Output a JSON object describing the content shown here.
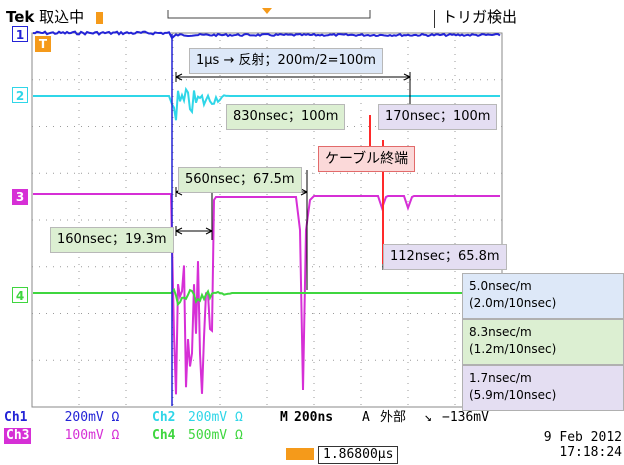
{
  "header": {
    "brand": "Tek",
    "status": "取込中",
    "trigger_status": "トリガ検出"
  },
  "channels": [
    {
      "marker": "1",
      "color": "#2323d6"
    },
    {
      "marker": "2",
      "color": "#2fd6e8"
    },
    {
      "marker": "3",
      "color": "#d62fd6"
    },
    {
      "marker": "4",
      "color": "#3fd63f"
    }
  ],
  "trigger_marker": "T",
  "annotations": {
    "reflection": "1μs → 反射；200m/2=100m",
    "a830": "830nsec；100m",
    "a170": "170nsec；100m",
    "cable_end": "ケーブル終端",
    "a560": "560nsec；67.5m",
    "a160": "160nsec；19.3m",
    "a112": "112nsec；65.8m"
  },
  "legend": [
    {
      "text": "5.0nsec/m\n(2.0m/10nsec)",
      "color": "#dde8f8"
    },
    {
      "text": "8.3nsec/m\n(1.2m/10nsec)",
      "color": "#dcefd2"
    },
    {
      "text": "1.7nsec/m\n(5.9m/10nsec)",
      "color": "#e4def2"
    }
  ],
  "footer": {
    "ch1_label": "Ch1",
    "ch1_value": "200mV Ω",
    "ch2_label": "Ch2",
    "ch2_value": "200mV Ω",
    "ch3_label": "Ch3",
    "ch3_value": "100mV Ω",
    "ch4_label": "Ch4",
    "ch4_value": "500mV Ω",
    "timebase_label": "M",
    "timebase": "200ns",
    "trigger_label": "A",
    "trigger_source": "外部",
    "trigger_slope": "↘",
    "trigger_level": "−136mV",
    "trigger_position": "1.86800μs",
    "date": "9 Feb  2012",
    "time": "17:18:24"
  }
}
